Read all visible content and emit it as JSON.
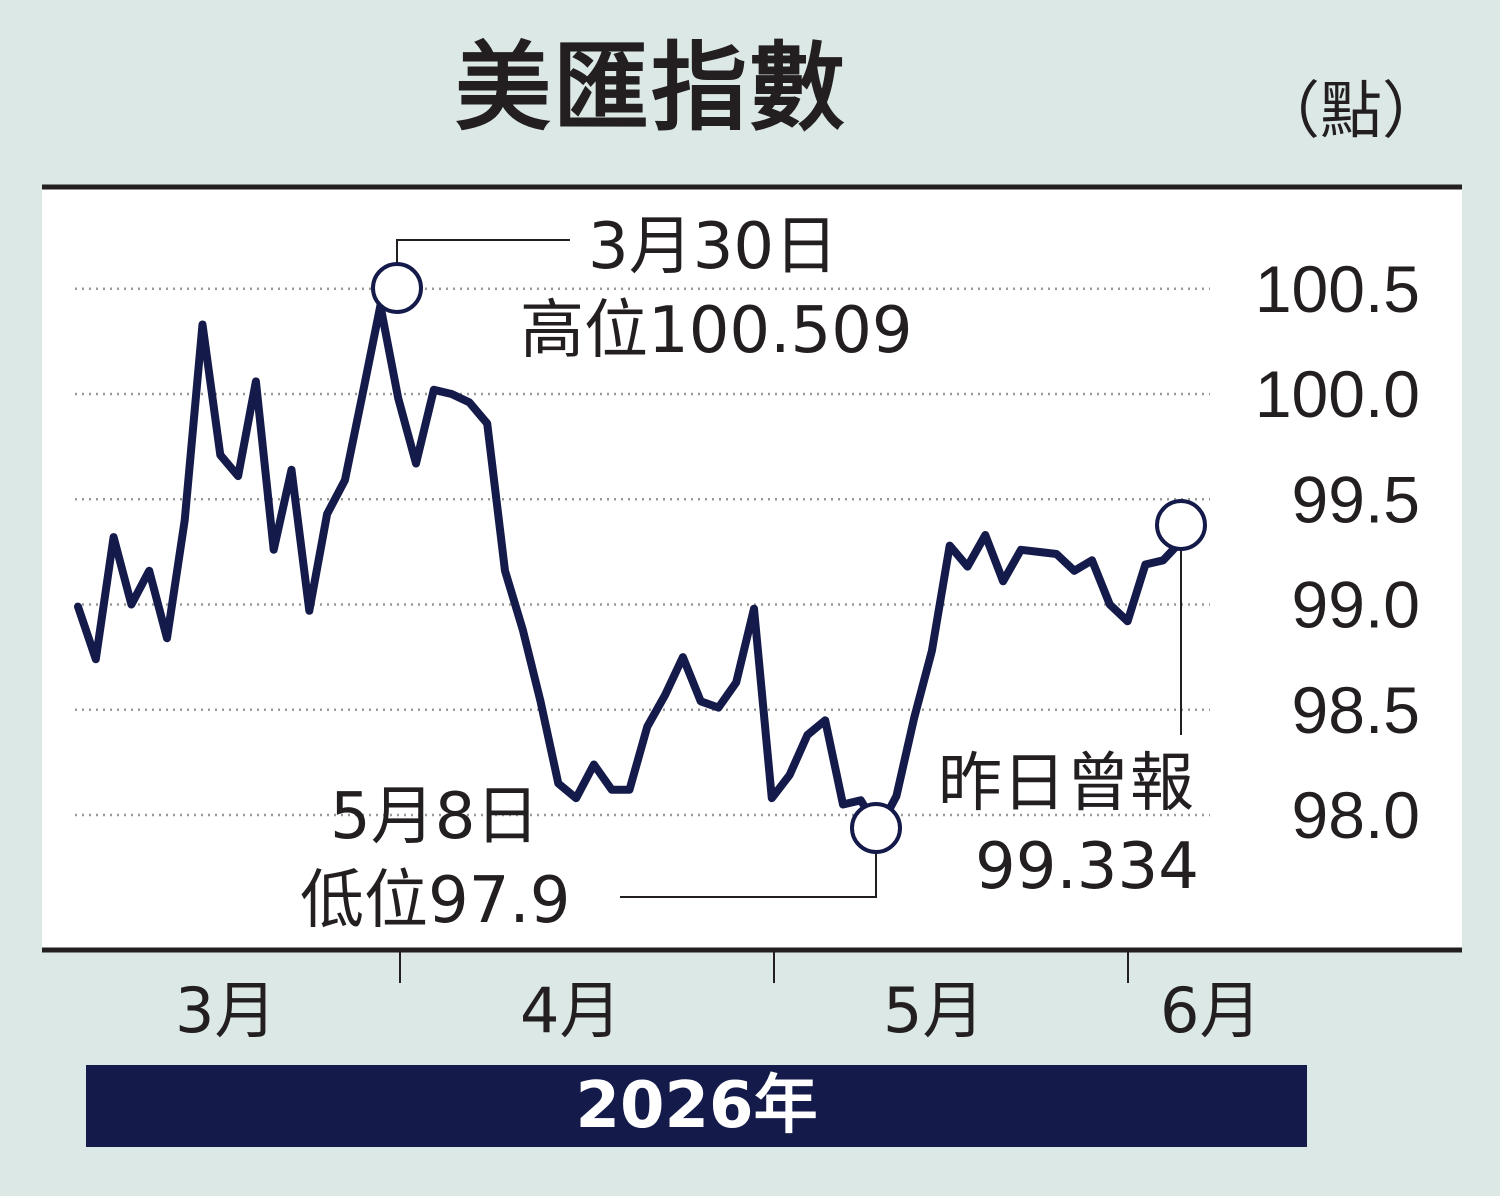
{
  "title": "美匯指數",
  "unit": "（點）",
  "year_label": "2026年",
  "colors": {
    "line": "#141a4a",
    "background": "#dbe8e6",
    "plot_bg": "#ffffff",
    "grid": "#999999"
  },
  "chart_data": {
    "type": "line",
    "title": "美匯指數",
    "ylabel": "（點）",
    "xlabel": "2026年",
    "ylim": [
      97.8,
      100.5
    ],
    "yticks": [
      "100.5",
      "100.0",
      "99.5",
      "99.0",
      "98.5",
      "98.0"
    ],
    "ytick_values": [
      100.5,
      100.0,
      99.5,
      99.0,
      98.5,
      98.0
    ],
    "months": [
      "3月",
      "4月",
      "5月",
      "6月"
    ],
    "grid": "dotted horizontal",
    "series": [
      {
        "values": [
          98.99,
          98.74,
          99.32,
          99.0,
          99.16,
          98.84,
          99.4,
          100.33,
          99.71,
          99.61,
          100.06,
          99.26,
          99.64,
          98.97,
          99.43,
          99.59,
          100.0,
          100.42,
          99.98,
          99.67,
          100.02,
          100.0,
          99.96,
          99.86,
          99.16,
          98.88,
          98.54,
          98.15,
          98.08,
          98.24,
          98.12,
          98.12,
          98.42,
          98.57,
          98.75,
          98.54,
          98.51,
          98.63,
          98.98,
          98.08,
          98.19,
          98.38,
          98.45,
          98.05,
          98.07,
          97.93,
          98.09,
          98.46,
          98.78,
          99.28,
          99.18,
          99.33,
          99.11,
          99.26,
          99.25,
          99.24,
          99.16,
          99.21,
          99.0,
          98.92,
          99.19,
          99.21,
          99.3
        ]
      }
    ],
    "annotations": [
      {
        "date": "3月30日",
        "text": "高位100.509",
        "value": 100.509
      },
      {
        "date": "5月8日",
        "text": "低位97.9",
        "value": 97.9
      },
      {
        "date": "昨日曾報",
        "text": "99.334",
        "value": 99.334
      }
    ]
  }
}
